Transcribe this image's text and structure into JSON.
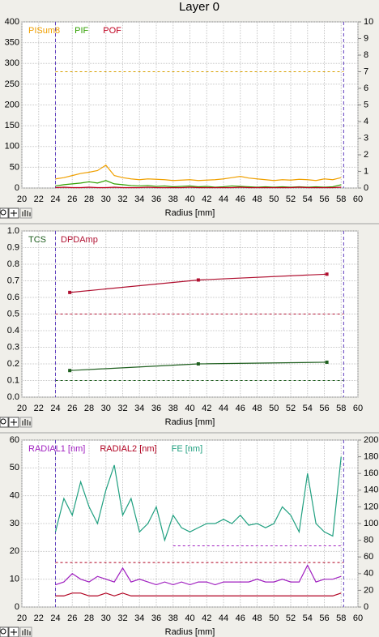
{
  "page": {
    "title": "Layer 0"
  },
  "chart_data": [
    {
      "type": "line",
      "xlabel": "Radius [mm]",
      "xlim": [
        20,
        60
      ],
      "xticks": [
        20,
        22,
        24,
        26,
        28,
        30,
        32,
        34,
        36,
        38,
        40,
        42,
        44,
        46,
        48,
        50,
        52,
        54,
        56,
        58,
        60
      ],
      "ylim": [
        0,
        400
      ],
      "yticks": [
        0,
        50,
        100,
        150,
        200,
        250,
        300,
        350,
        400
      ],
      "y2lim": [
        0,
        10
      ],
      "y2ticks": [
        0,
        1,
        2,
        3,
        4,
        5,
        6,
        7,
        8,
        9,
        10
      ],
      "grid": true,
      "x": [
        24,
        25,
        26,
        27,
        28,
        29,
        30,
        31,
        32,
        33,
        34,
        35,
        36,
        37,
        38,
        39,
        40,
        41,
        42,
        43,
        44,
        45,
        46,
        47,
        48,
        49,
        50,
        51,
        52,
        53,
        54,
        55,
        56,
        57,
        58
      ],
      "series": [
        {
          "name": "PISum8",
          "color": "#f0a000",
          "values": [
            22,
            25,
            30,
            35,
            38,
            42,
            55,
            30,
            25,
            22,
            20,
            22,
            21,
            20,
            18,
            19,
            20,
            18,
            19,
            20,
            22,
            25,
            28,
            24,
            22,
            20,
            18,
            20,
            19,
            21,
            20,
            18,
            22,
            20,
            25
          ]
        },
        {
          "name": "PIF",
          "color": "#30a000",
          "values": [
            5,
            8,
            10,
            12,
            15,
            12,
            18,
            10,
            8,
            6,
            5,
            6,
            4,
            5,
            3,
            4,
            5,
            3,
            4,
            2,
            3,
            5,
            4,
            3,
            2,
            3,
            2,
            3,
            2,
            3,
            2,
            3,
            2,
            3,
            8
          ]
        },
        {
          "name": "POF",
          "color": "#c00020",
          "values": [
            1,
            2,
            1,
            1,
            2,
            1,
            1,
            2,
            1,
            1,
            1,
            2,
            1,
            1,
            1,
            1,
            2,
            1,
            1,
            1,
            1,
            1,
            2,
            1,
            1,
            1,
            1,
            1,
            1,
            2,
            1,
            1,
            1,
            1,
            2
          ]
        }
      ],
      "hlines": [
        {
          "value": 280,
          "color": "#d8a000",
          "x_range": [
            24,
            58.3
          ]
        }
      ],
      "vlines": [
        24,
        58.3
      ]
    },
    {
      "type": "line",
      "xlabel": "Radius [mm]",
      "xlim": [
        20,
        60
      ],
      "xticks": [
        20,
        22,
        24,
        26,
        28,
        30,
        32,
        34,
        36,
        38,
        40,
        42,
        44,
        46,
        48,
        50,
        52,
        54,
        56,
        58,
        60
      ],
      "ylim": [
        0,
        1
      ],
      "yticks": [
        {
          "value": 0,
          "label": "0.0"
        },
        0.1,
        0.2,
        0.3,
        0.4,
        0.5,
        0.6,
        0.7,
        0.8,
        0.9,
        {
          "value": 1,
          "label": "1.0"
        }
      ],
      "grid": true,
      "markers": true,
      "x": [
        25.7,
        41,
        56.3
      ],
      "series": [
        {
          "name": "TCS",
          "color": "#206020",
          "values": [
            0.16,
            0.2,
            0.21
          ]
        },
        {
          "name": "DPDAmp",
          "color": "#b01030",
          "values": [
            0.63,
            0.705,
            0.74
          ]
        }
      ],
      "hlines": [
        {
          "value": 0.5,
          "color": "#b01030",
          "x_range": [
            24,
            58.3
          ]
        },
        {
          "value": 0.1,
          "color": "#206020",
          "x_range": [
            24,
            58.3
          ]
        }
      ],
      "vlines": [
        24,
        58.3
      ]
    },
    {
      "type": "line",
      "xlabel": "Radius [mm]",
      "xlim": [
        20,
        60
      ],
      "xticks": [
        20,
        22,
        24,
        26,
        28,
        30,
        32,
        34,
        36,
        38,
        40,
        42,
        44,
        46,
        48,
        50,
        52,
        54,
        56,
        58,
        60
      ],
      "ylim": [
        0,
        60
      ],
      "yticks": [
        0,
        10,
        20,
        30,
        40,
        50,
        60
      ],
      "y2lim": [
        0,
        200
      ],
      "y2ticks": [
        0,
        20,
        40,
        60,
        80,
        100,
        120,
        140,
        160,
        180,
        200
      ],
      "grid": true,
      "x": [
        24,
        25,
        26,
        27,
        28,
        29,
        30,
        31,
        32,
        33,
        34,
        35,
        36,
        37,
        38,
        39,
        40,
        41,
        42,
        43,
        44,
        45,
        46,
        47,
        48,
        49,
        50,
        51,
        52,
        53,
        54,
        55,
        56,
        57,
        58
      ],
      "series": [
        {
          "name": "RADIAL1 [nm]",
          "color": "#a020c0",
          "values": [
            8,
            9,
            12,
            10,
            9,
            11,
            10,
            9,
            14,
            9,
            10,
            9,
            8,
            9,
            8,
            9,
            8,
            9,
            9,
            8,
            9,
            9,
            9,
            9,
            10,
            9,
            9,
            10,
            9,
            9,
            15,
            9,
            10,
            10,
            11
          ]
        },
        {
          "name": "RADIAL2 [nm]",
          "color": "#b00020",
          "values": [
            4,
            4,
            5,
            5,
            4,
            4,
            5,
            4,
            5,
            4,
            4,
            4,
            4,
            4,
            4,
            4,
            4,
            4,
            4,
            4,
            4,
            4,
            4,
            4,
            4,
            4,
            4,
            4,
            4,
            4,
            4,
            4,
            4,
            4,
            5
          ]
        },
        {
          "name": "FE [nm]",
          "color": "#20a080",
          "axis": "y2",
          "values": [
            90,
            130,
            110,
            150,
            120,
            100,
            140,
            170,
            110,
            130,
            90,
            100,
            120,
            80,
            110,
            95,
            90,
            95,
            100,
            100,
            105,
            100,
            110,
            98,
            100,
            95,
            100,
            120,
            110,
            90,
            160,
            100,
            90,
            85,
            180
          ]
        }
      ],
      "hlines": [
        {
          "value": 22,
          "color": "#a020c0",
          "x_range": [
            38,
            58.3
          ]
        },
        {
          "value": 16,
          "color": "#b00020",
          "x_range": [
            24,
            58.3
          ]
        }
      ],
      "vlines": [
        24,
        58.3
      ]
    }
  ]
}
